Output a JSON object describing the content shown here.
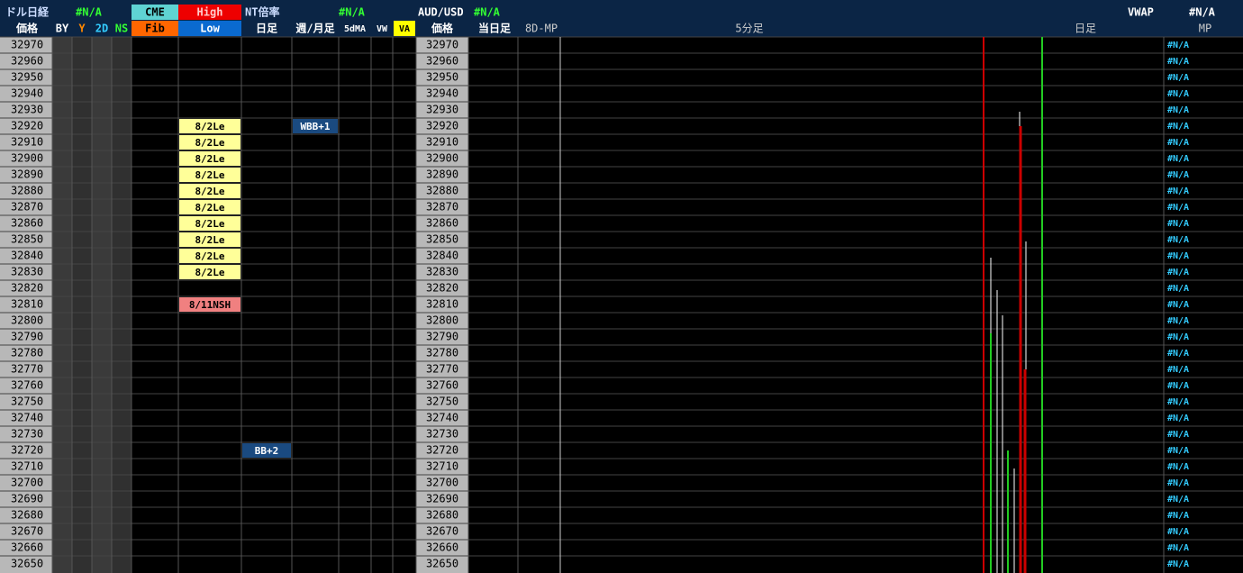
{
  "header": {
    "row1": {
      "dollar_nikkei": "ドル日経",
      "dollar_nikkei_value": "#N/A",
      "cme": "CME",
      "high": "High",
      "nt_ratio": "NT倍率",
      "nt_value": "#N/A",
      "aud_usd": "AUD/USD",
      "aud_usd_value": "#N/A",
      "vwap": "VWAP",
      "vwap_value": "#N/A"
    },
    "row2": {
      "price": "価格",
      "by": "BY",
      "y": "Y",
      "d2": "2D",
      "ns": "NS",
      "fib": "Fib",
      "low": "Low",
      "daily": "日足",
      "weekly_monthly": "週/月足",
      "ma5d": "5dMA",
      "vw": "VW",
      "va": "VA",
      "price2": "価格",
      "today": "当日足",
      "mp8d": "8D-MP",
      "min5": "5分足",
      "daily2": "日足",
      "mp": "MP"
    }
  },
  "grid": {
    "prices": [
      32970,
      32960,
      32950,
      32940,
      32930,
      32920,
      32910,
      32900,
      32890,
      32880,
      32870,
      32860,
      32850,
      32840,
      32830,
      32820,
      32810,
      32800,
      32790,
      32780,
      32770,
      32760,
      32750,
      32740,
      32730,
      32720,
      32710,
      32700,
      32690,
      32680,
      32670,
      32660,
      32650
    ],
    "mp_values": [
      "#N/A",
      "#N/A",
      "#N/A",
      "#N/A",
      "#N/A",
      "#N/A",
      "#N/A",
      "#N/A",
      "#N/A",
      "#N/A",
      "#N/A",
      "#N/A",
      "#N/A",
      "#N/A",
      "#N/A",
      "#N/A",
      "#N/A",
      "#N/A",
      "#N/A",
      "#N/A",
      "#N/A",
      "#N/A",
      "#N/A",
      "#N/A",
      "#N/A",
      "#N/A",
      "#N/A",
      "#N/A",
      "#N/A",
      "#N/A",
      "#N/A",
      "#N/A",
      "#N/A"
    ],
    "low_marks": [
      {
        "price": 32920,
        "text": "8/2Le"
      },
      {
        "price": 32910,
        "text": "8/2Le"
      },
      {
        "price": 32900,
        "text": "8/2Le"
      },
      {
        "price": 32890,
        "text": "8/2Le"
      },
      {
        "price": 32880,
        "text": "8/2Le"
      },
      {
        "price": 32870,
        "text": "8/2Le"
      },
      {
        "price": 32860,
        "text": "8/2Le"
      },
      {
        "price": 32850,
        "text": "8/2Le"
      },
      {
        "price": 32840,
        "text": "8/2Le"
      },
      {
        "price": 32830,
        "text": "8/2Le"
      },
      {
        "price": 32810,
        "text": "8/11NSH"
      }
    ],
    "daily_marks": [
      {
        "price": 32720,
        "text": "BB+2"
      }
    ],
    "weekly_marks": [
      {
        "price": 32920,
        "text": "WBB+1"
      }
    ]
  }
}
